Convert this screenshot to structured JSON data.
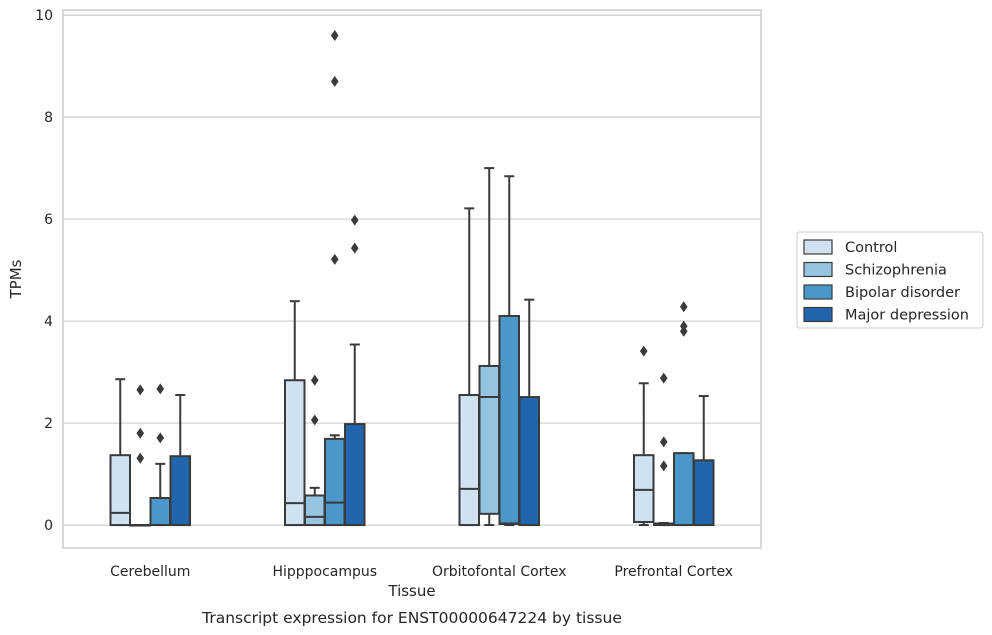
{
  "chart_data": {
    "type": "box",
    "caption": "Transcript expression for ENST00000647224 by tissue",
    "xlabel": "Tissue",
    "ylabel": "TPMs",
    "ylim": [
      -0.45,
      10.1
    ],
    "yticks": [
      0,
      2,
      4,
      6,
      8,
      10
    ],
    "grid": true,
    "legend_position": "right",
    "categories": [
      "Cerebellum",
      "Hipppocampus",
      "Orbitofontal Cortex",
      "Prefrontal Cortex"
    ],
    "series": [
      {
        "name": "Control",
        "color": "#d0e1f2",
        "boxes": [
          {
            "min": 0,
            "q1": 0,
            "median": 0.24,
            "q3": 1.37,
            "max": 2.86,
            "outliers": []
          },
          {
            "min": 0,
            "q1": 0,
            "median": 0.43,
            "q3": 2.84,
            "max": 4.39,
            "outliers": []
          },
          {
            "min": 0,
            "q1": 0,
            "median": 0.71,
            "q3": 2.55,
            "max": 6.21,
            "outliers": []
          },
          {
            "min": 0,
            "q1": 0.06,
            "median": 0.69,
            "q3": 1.37,
            "max": 2.78,
            "outliers": [
              3.41
            ]
          }
        ]
      },
      {
        "name": "Schizophrenia",
        "color": "#94c4df",
        "boxes": [
          {
            "min": 0,
            "q1": 0,
            "median": 0,
            "q3": 0,
            "max": 0,
            "outliers": [
              1.31,
              1.8,
              2.65
            ]
          },
          {
            "min": 0,
            "q1": 0,
            "median": 0.16,
            "q3": 0.58,
            "max": 0.73,
            "outliers": [
              2.06,
              2.84
            ]
          },
          {
            "min": 0,
            "q1": 0.22,
            "median": 2.51,
            "q3": 3.12,
            "max": 7.0,
            "outliers": []
          },
          {
            "min": 0,
            "q1": 0,
            "median": 0.01,
            "q3": 0.03,
            "max": 0.04,
            "outliers": [
              1.16,
              1.63,
              2.88
            ]
          }
        ]
      },
      {
        "name": "Bipolar disorder",
        "color": "#4a98c9",
        "boxes": [
          {
            "min": 0,
            "q1": 0,
            "median": 0,
            "q3": 0.53,
            "max": 1.2,
            "outliers": [
              1.71,
              2.67
            ]
          },
          {
            "min": 0,
            "q1": 0,
            "median": 0.44,
            "q3": 1.69,
            "max": 1.76,
            "outliers": [
              5.21,
              8.7,
              9.6
            ]
          },
          {
            "min": 0,
            "q1": 0.02,
            "median": 0.03,
            "q3": 4.1,
            "max": 6.84,
            "outliers": []
          },
          {
            "min": 0,
            "q1": 0,
            "median": 0,
            "q3": 1.41,
            "max": 1.41,
            "outliers": [
              3.8,
              3.9,
              4.28
            ]
          }
        ]
      },
      {
        "name": "Major depression",
        "color": "#2166ac",
        "boxes": [
          {
            "min": 0,
            "q1": 0,
            "median": 0,
            "q3": 1.35,
            "max": 2.55,
            "outliers": []
          },
          {
            "min": 0,
            "q1": 0,
            "median": 0,
            "q3": 1.98,
            "max": 3.54,
            "outliers": [
              5.43,
              5.98
            ]
          },
          {
            "min": 0,
            "q1": 0,
            "median": 0,
            "q3": 2.51,
            "max": 4.42,
            "outliers": []
          },
          {
            "min": 0,
            "q1": 0,
            "median": 0,
            "q3": 1.27,
            "max": 2.53,
            "outliers": []
          }
        ]
      }
    ]
  }
}
